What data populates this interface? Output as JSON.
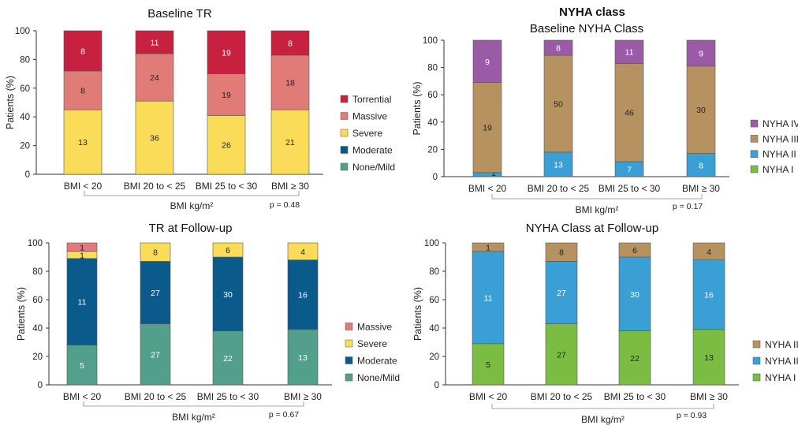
{
  "header": {
    "right_heading": "NYHA class"
  },
  "colors": {
    "torrential": "#c8203f",
    "massive": "#e07b78",
    "severe": "#fbdc58",
    "moderate": "#0a5a8c",
    "none_mild": "#52a08b",
    "nyha4": "#9b5aa6",
    "nyha3": "#b5925f",
    "nyha2": "#3a9fd5",
    "nyha1": "#7bbd43"
  },
  "chart_data": [
    {
      "id": "tl",
      "type": "bar",
      "stacked": true,
      "title": "Baseline TR",
      "ylabel": "Patients (%)",
      "xlabel": "BMI kg/m²",
      "p_value": "p = 0.48",
      "ylim": [
        0,
        100
      ],
      "yticks": [
        0,
        20,
        40,
        60,
        80,
        100
      ],
      "categories": [
        "BMI < 20",
        "BMI 20 to < 25",
        "BMI 25 to < 30",
        "BMI ≥ 30"
      ],
      "series": [
        {
          "name": "None/Mild",
          "color_key": "none_mild",
          "values": [
            0,
            0,
            0,
            0
          ],
          "labels": [
            "",
            "",
            "",
            ""
          ],
          "legend": true
        },
        {
          "name": "Moderate",
          "color_key": "moderate",
          "values": [
            0,
            0,
            0,
            0
          ],
          "labels": [
            "",
            "",
            "",
            ""
          ],
          "legend": true
        },
        {
          "name": "Severe",
          "color_key": "severe",
          "values": [
            45,
            51,
            41,
            45
          ],
          "labels": [
            "13",
            "36",
            "26",
            "21"
          ],
          "legend": true
        },
        {
          "name": "Massive",
          "color_key": "massive",
          "values": [
            27,
            33,
            29,
            38
          ],
          "labels": [
            "8",
            "24",
            "19",
            "18"
          ],
          "legend": true
        },
        {
          "name": "Torrential",
          "color_key": "torrential",
          "values": [
            28,
            16,
            30,
            17
          ],
          "labels": [
            "8",
            "11",
            "19",
            "8"
          ],
          "legend": true
        }
      ]
    },
    {
      "id": "tr",
      "type": "bar",
      "stacked": true,
      "title": "Baseline NYHA Class",
      "ylabel": "Patients (%)",
      "xlabel": "BMI kg/m²",
      "p_value": "p = 0.17",
      "ylim": [
        0,
        100
      ],
      "yticks": [
        0,
        20,
        40,
        60,
        80,
        100
      ],
      "categories": [
        "BMI < 20",
        "BMI 20 to < 25",
        "BMI 25 to < 30",
        "BMI ≥ 30"
      ],
      "series": [
        {
          "name": "NYHA I",
          "color_key": "nyha1",
          "values": [
            0,
            0,
            0,
            0
          ],
          "labels": [
            "",
            "",
            "",
            ""
          ],
          "legend": true
        },
        {
          "name": "NYHA II",
          "color_key": "nyha2",
          "values": [
            3,
            18,
            11,
            17
          ],
          "labels": [
            "1",
            "13",
            "7",
            "8"
          ],
          "legend": true
        },
        {
          "name": "NYHA III",
          "color_key": "nyha3",
          "values": [
            66,
            71,
            72,
            64
          ],
          "labels": [
            "19",
            "50",
            "46",
            "30"
          ],
          "legend": true
        },
        {
          "name": "NYHA IV",
          "color_key": "nyha4",
          "values": [
            31,
            11,
            17,
            19
          ],
          "labels": [
            "9",
            "8",
            "11",
            "9"
          ],
          "legend": true
        }
      ]
    },
    {
      "id": "bl",
      "type": "bar",
      "stacked": true,
      "title": "TR at Follow-up",
      "ylabel": "Patients (%)",
      "xlabel": "BMI kg/m²",
      "p_value": "p = 0.67",
      "ylim": [
        0,
        100
      ],
      "yticks": [
        0,
        20,
        40,
        60,
        80,
        100
      ],
      "categories": [
        "BMI < 20",
        "BMI 20 to < 25",
        "BMI 25 to < 30",
        "BMI ≥ 30"
      ],
      "series": [
        {
          "name": "None/Mild",
          "color_key": "none_mild",
          "values": [
            28,
            43,
            38,
            39
          ],
          "labels": [
            "5",
            "27",
            "22",
            "13"
          ],
          "legend": true
        },
        {
          "name": "Moderate",
          "color_key": "moderate",
          "values": [
            61,
            44,
            52,
            49
          ],
          "labels": [
            "11",
            "27",
            "30",
            "16"
          ],
          "legend": true
        },
        {
          "name": "Severe",
          "color_key": "severe",
          "values": [
            5,
            13,
            10,
            12
          ],
          "labels": [
            "1",
            "8",
            "6",
            "4"
          ],
          "legend": true
        },
        {
          "name": "Massive",
          "color_key": "massive",
          "values": [
            6,
            0,
            0,
            0
          ],
          "labels": [
            "1",
            "",
            "",
            ""
          ],
          "legend": true
        }
      ]
    },
    {
      "id": "br",
      "type": "bar",
      "stacked": true,
      "title": "NYHA Class at Follow-up",
      "ylabel": "Patients (%)",
      "xlabel": "BMI kg/m²",
      "p_value": "p = 0.93",
      "ylim": [
        0,
        100
      ],
      "yticks": [
        0,
        20,
        40,
        60,
        80,
        100
      ],
      "categories": [
        "BMI < 20",
        "BMI 20 to < 25",
        "BMI 25 to < 30",
        "BMI ≥ 30"
      ],
      "series": [
        {
          "name": "NYHA I",
          "color_key": "nyha1",
          "values": [
            29,
            43,
            38,
            39
          ],
          "labels": [
            "5",
            "27",
            "22",
            "13"
          ],
          "legend": true
        },
        {
          "name": "NYHA II",
          "color_key": "nyha2",
          "values": [
            65,
            44,
            52,
            49
          ],
          "labels": [
            "11",
            "27",
            "30",
            "16"
          ],
          "legend": true
        },
        {
          "name": "NYHA III",
          "color_key": "nyha3",
          "values": [
            6,
            13,
            10,
            12
          ],
          "labels": [
            "1",
            "8",
            "6",
            "4"
          ],
          "legend": true
        }
      ]
    }
  ]
}
